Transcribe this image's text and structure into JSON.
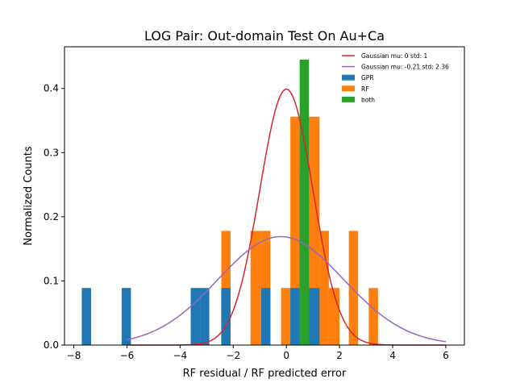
{
  "chart_data": {
    "type": "bar",
    "title": "LOG Pair: Out-domain Test On Au+Ca",
    "xlabel": "RF residual / RF predicted error",
    "ylabel": "Normalized Counts",
    "xlim": [
      -8.35,
      6.7
    ],
    "ylim": [
      0,
      0.465
    ],
    "xticks": [
      -8,
      -6,
      -4,
      -2,
      0,
      2,
      4,
      6
    ],
    "xtick_labels": [
      "−8",
      "−6",
      "−4",
      "−2",
      "0",
      "2",
      "4",
      "6"
    ],
    "yticks": [
      0.0,
      0.1,
      0.2,
      0.3,
      0.4
    ],
    "ytick_labels": [
      "0.0",
      "0.1",
      "0.2",
      "0.3",
      "0.4"
    ],
    "grid": false,
    "legend_position": "top-right",
    "histograms": [
      {
        "name": "GPR",
        "color": "#1f77b4",
        "bins": [
          {
            "x0": -7.7,
            "x1": -7.35,
            "h": 0.089
          },
          {
            "x0": -6.2,
            "x1": -5.85,
            "h": 0.089
          },
          {
            "x0": -3.6,
            "x1": -3.25,
            "h": 0.089
          },
          {
            "x0": -3.25,
            "x1": -2.9,
            "h": 0.089
          },
          {
            "x0": -2.45,
            "x1": -2.1,
            "h": 0.089
          },
          {
            "x0": -0.95,
            "x1": -0.6,
            "h": 0.089
          },
          {
            "x0": 0.15,
            "x1": 0.5,
            "h": 0.089
          },
          {
            "x0": 0.5,
            "x1": 0.85,
            "h": 0.267
          },
          {
            "x0": 0.85,
            "x1": 1.25,
            "h": 0.089
          }
        ]
      },
      {
        "name": "RF",
        "color": "#ff7f0e",
        "bins": [
          {
            "x0": -2.45,
            "x1": -2.1,
            "h": 0.178
          },
          {
            "x0": -1.35,
            "x1": -0.95,
            "h": 0.178
          },
          {
            "x0": -0.95,
            "x1": -0.6,
            "h": 0.178
          },
          {
            "x0": -0.2,
            "x1": 0.15,
            "h": 0.089
          },
          {
            "x0": 0.15,
            "x1": 0.5,
            "h": 0.356
          },
          {
            "x0": 0.5,
            "x1": 0.85,
            "h": 0.356
          },
          {
            "x0": 0.85,
            "x1": 1.25,
            "h": 0.356
          },
          {
            "x0": 1.25,
            "x1": 1.6,
            "h": 0.178
          },
          {
            "x0": 1.6,
            "x1": 2.0,
            "h": 0.089
          },
          {
            "x0": 2.35,
            "x1": 2.7,
            "h": 0.178
          },
          {
            "x0": 3.1,
            "x1": 3.45,
            "h": 0.089
          }
        ]
      },
      {
        "name": "both",
        "color": "#2ca02c",
        "bins": [
          {
            "x0": 0.5,
            "x1": 0.85,
            "h": 0.445
          }
        ]
      }
    ],
    "draw_order": [
      {
        "series": "RF",
        "bins": [
          0,
          1,
          2,
          3,
          4,
          5,
          6,
          7,
          8,
          9,
          10
        ]
      },
      {
        "series": "GPR",
        "bins": [
          0,
          1,
          2,
          3,
          4,
          5,
          6,
          7,
          8
        ]
      },
      {
        "series": "both",
        "bins": [
          0
        ]
      }
    ],
    "curves": [
      {
        "name": "Gaussian mu: 0 std: 1",
        "color": "#d62728",
        "mu": 0,
        "std": 1,
        "x_range": [
          -6,
          6
        ]
      },
      {
        "name": "Gaussian mu: -0.21 std: 2.36",
        "color": "#9467bd",
        "mu": -0.21,
        "std": 2.36,
        "x_range": [
          -6,
          6
        ]
      }
    ]
  }
}
